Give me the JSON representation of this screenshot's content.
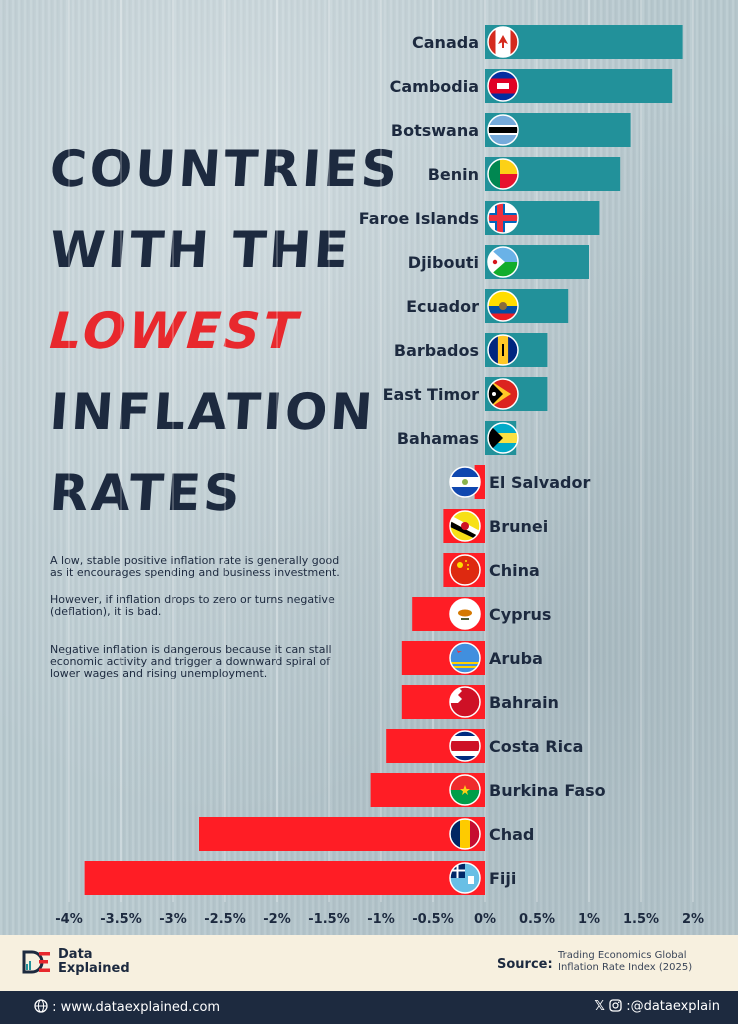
{
  "title": {
    "line1": "COUNTRIES",
    "line2": "WITH THE",
    "line3": "LOWEST",
    "line4": "INFLATION",
    "line5": "RATES"
  },
  "description": {
    "p1": "A low, stable positive inflation rate is generally good as it encourages spending and business investment.",
    "p2": "However, if inflation drops to zero or turns negative (deflation), it is bad.",
    "p3": "Negative inflation is dangerous because it can stall economic activity and trigger a downward spiral of lower wages and rising unemployment."
  },
  "colors": {
    "positive": "#22919a",
    "negative": "#ff1d25",
    "navy": "#1d2a3f",
    "accent": "#e8282d"
  },
  "chart_data": {
    "type": "bar",
    "orientation": "horizontal",
    "categories": [
      "Canada",
      "Cambodia",
      "Botswana",
      "Benin",
      "Faroe Islands",
      "Djibouti",
      "Ecuador",
      "Barbados",
      "East Timor",
      "Bahamas",
      "El Salvador",
      "Brunei",
      "China",
      "Cyprus",
      "Aruba",
      "Bahrain",
      "Costa Rica",
      "Burkina Faso",
      "Chad",
      "Fiji"
    ],
    "values": [
      1.9,
      1.8,
      1.4,
      1.3,
      1.1,
      1.0,
      0.8,
      0.6,
      0.6,
      0.3,
      -0.1,
      -0.4,
      -0.4,
      -0.7,
      -0.8,
      -0.8,
      -0.95,
      -1.1,
      -2.75,
      -3.85
    ],
    "xlim": [
      -4,
      2
    ],
    "xticks": [
      "-4%",
      "-3.5%",
      "-3%",
      "-2.5%",
      "-2%",
      "-1.5%",
      "-1%",
      "-0.5%",
      "0%",
      "0.5%",
      "1%",
      "1.5%",
      "2%"
    ],
    "xtick_values": [
      -4,
      -3.5,
      -3,
      -2.5,
      -2,
      -1.5,
      -1,
      -0.5,
      0,
      0.5,
      1,
      1.5,
      2
    ],
    "flag_icons": [
      "canada-flag-icon",
      "cambodia-flag-icon",
      "botswana-flag-icon",
      "benin-flag-icon",
      "faroe-islands-flag-icon",
      "djibouti-flag-icon",
      "ecuador-flag-icon",
      "barbados-flag-icon",
      "east-timor-flag-icon",
      "bahamas-flag-icon",
      "el-salvador-flag-icon",
      "brunei-flag-icon",
      "china-flag-icon",
      "cyprus-flag-icon",
      "aruba-flag-icon",
      "bahrain-flag-icon",
      "costa-rica-flag-icon",
      "burkina-faso-flag-icon",
      "chad-flag-icon",
      "fiji-flag-icon"
    ],
    "grid": true
  },
  "footer": {
    "brand_line1": "Data",
    "brand_line2": "Explained",
    "source_label": "Source:",
    "source_text": "Trading Economics Global Inflation Rate Index (2025)",
    "website": ": www.dataexplained.com",
    "social": ":@dataexplain"
  }
}
